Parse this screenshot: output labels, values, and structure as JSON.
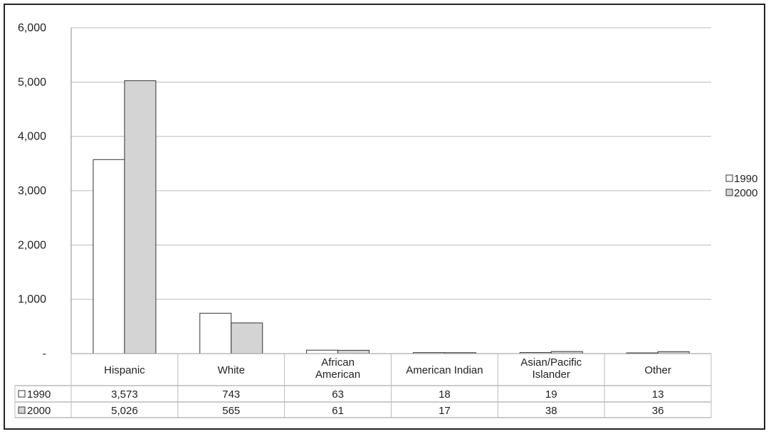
{
  "chart_data": {
    "type": "bar",
    "categories": [
      "Hispanic",
      "White",
      "African American",
      "American Indian",
      "Asian/Pacific Islander",
      "Other"
    ],
    "category_label_lines": [
      [
        "Hispanic"
      ],
      [
        "White"
      ],
      [
        "African",
        "American"
      ],
      [
        "American Indian"
      ],
      [
        "Asian/Pacific",
        "Islander"
      ],
      [
        "Other"
      ]
    ],
    "series": [
      {
        "name": "1990",
        "values": [
          3573,
          743,
          63,
          18,
          19,
          13
        ],
        "labels": [
          "3,573",
          "743",
          "63",
          "18",
          "19",
          "13"
        ],
        "color": "#ffffff"
      },
      {
        "name": "2000",
        "values": [
          5026,
          565,
          61,
          17,
          38,
          36
        ],
        "labels": [
          "5,026",
          "565",
          "61",
          "17",
          "38",
          "36"
        ],
        "color": "#d4d4d4"
      }
    ],
    "y_ticks": [
      {
        "value": 0,
        "label": "-"
      },
      {
        "value": 1000,
        "label": "1,000"
      },
      {
        "value": 2000,
        "label": "2,000"
      },
      {
        "value": 3000,
        "label": "3,000"
      },
      {
        "value": 4000,
        "label": "4,000"
      },
      {
        "value": 5000,
        "label": "5,000"
      },
      {
        "value": 6000,
        "label": "6,000"
      }
    ],
    "ylim": [
      0,
      6000
    ],
    "grid": true,
    "legend_position": "right",
    "data_table": true,
    "title": "",
    "xlabel": "",
    "ylabel": ""
  }
}
